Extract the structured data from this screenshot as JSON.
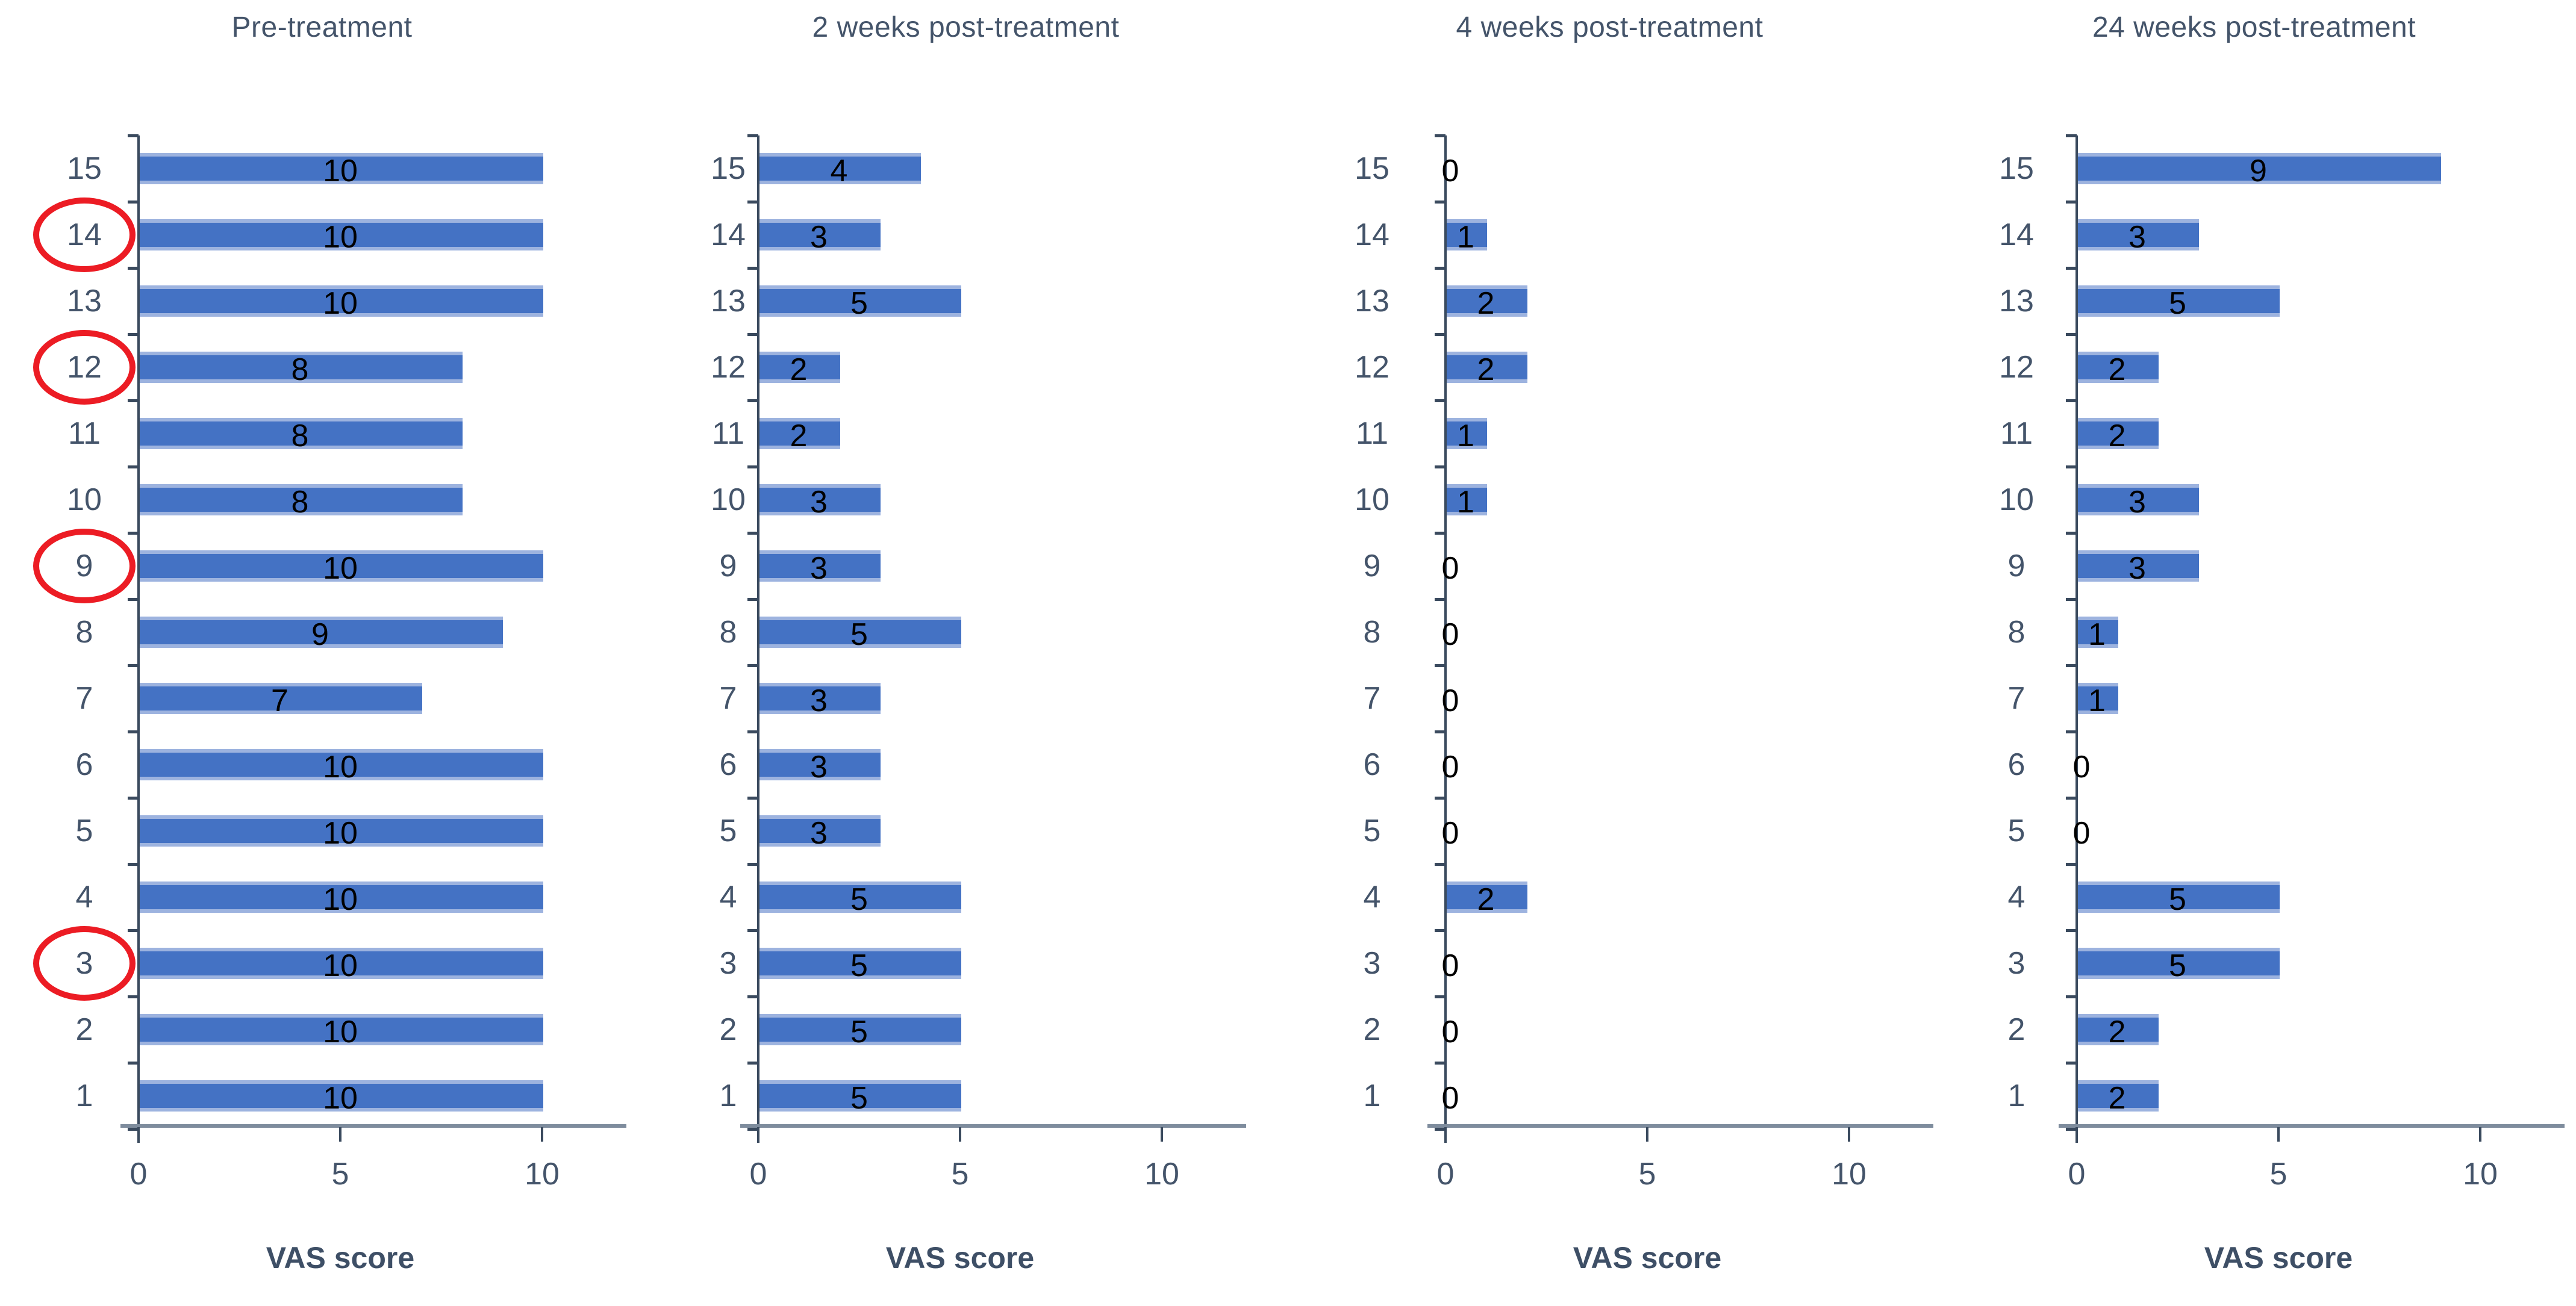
{
  "figure": {
    "type": "multi-panel-bar-figure",
    "background": "#ffffff"
  },
  "colors": {
    "bar_fill": "#4472C4",
    "bar_edge_light": "#9DB3DF",
    "category_text": "#44546A",
    "title_text": "#44546A",
    "value_text": "#000000",
    "horizontal_axis_line": "#7E8C9D",
    "vertical_axis_line": "#3A4A5E",
    "highlight_circle": "#EC1C24"
  },
  "chart_data": [
    {
      "type": "bar",
      "orientation": "horizontal",
      "title": "Pre-treatment",
      "xlabel": "VAS score",
      "ylabel": "",
      "categories": [
        15,
        14,
        13,
        12,
        11,
        10,
        9,
        8,
        7,
        6,
        5,
        4,
        3,
        2,
        1
      ],
      "values": [
        10,
        10,
        10,
        8,
        8,
        8,
        10,
        9,
        7,
        10,
        10,
        10,
        10,
        10,
        10
      ],
      "circled_categories": [
        14,
        12,
        9,
        3
      ],
      "x_ticks": [
        0,
        5,
        10
      ],
      "xlim": [
        0,
        12
      ],
      "grid": false,
      "legend": "none"
    },
    {
      "type": "bar",
      "orientation": "horizontal",
      "title": "2 weeks post-treatment",
      "xlabel": "VAS score",
      "ylabel": "",
      "categories": [
        15,
        14,
        13,
        12,
        11,
        10,
        9,
        8,
        7,
        6,
        5,
        4,
        3,
        2,
        1
      ],
      "values": [
        4,
        3,
        5,
        2,
        2,
        3,
        3,
        5,
        3,
        3,
        3,
        5,
        5,
        5,
        5
      ],
      "circled_categories": [],
      "x_ticks": [
        0,
        5,
        10
      ],
      "xlim": [
        0,
        12
      ],
      "grid": false,
      "legend": "none"
    },
    {
      "type": "bar",
      "orientation": "horizontal",
      "title": "4 weeks post-treatment",
      "xlabel": "VAS score",
      "ylabel": "",
      "categories": [
        15,
        14,
        13,
        12,
        11,
        10,
        9,
        8,
        7,
        6,
        5,
        4,
        3,
        2,
        1
      ],
      "values": [
        0,
        1,
        2,
        2,
        1,
        1,
        0,
        0,
        0,
        0,
        0,
        2,
        0,
        0,
        0
      ],
      "circled_categories": [],
      "x_ticks": [
        0,
        5,
        10
      ],
      "xlim": [
        0,
        12
      ],
      "grid": false,
      "legend": "none"
    },
    {
      "type": "bar",
      "orientation": "horizontal",
      "title": "24 weeks post-treatment",
      "xlabel": "VAS score",
      "ylabel": "",
      "categories": [
        15,
        14,
        13,
        12,
        11,
        10,
        9,
        8,
        7,
        6,
        5,
        4,
        3,
        2,
        1
      ],
      "values": [
        9,
        3,
        5,
        2,
        2,
        3,
        3,
        1,
        1,
        0,
        0,
        5,
        5,
        2,
        2
      ],
      "circled_categories": [],
      "x_ticks": [
        0,
        5,
        10
      ],
      "xlim": [
        0,
        12
      ],
      "grid": false,
      "legend": "none"
    }
  ]
}
